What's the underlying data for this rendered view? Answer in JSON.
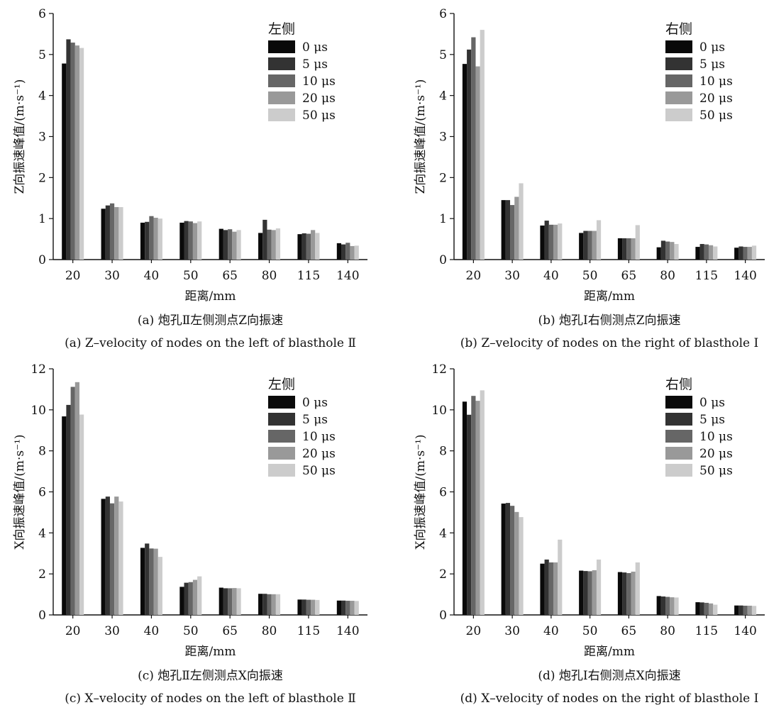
{
  "colors": [
    "#0a0a0a",
    "#333333",
    "#666666",
    "#999999",
    "#cccccc"
  ],
  "chart_data": [
    {
      "type": "bar",
      "ylabel": "Z向振速峰值/(m·s⁻¹)",
      "xlabel": "距离/mm",
      "caption_cn": "(a) 炮孔Ⅱ左侧测点Z向振速",
      "caption_en": "(a) Z–velocity of nodes on the left of blasthole Ⅱ",
      "legend_title": "左侧",
      "legend_position": "top-right",
      "categories": [
        "20",
        "30",
        "40",
        "50",
        "65",
        "80",
        "115",
        "140"
      ],
      "ylim": [
        0,
        6
      ],
      "yticks": [
        0,
        1,
        2,
        3,
        4,
        5,
        6
      ],
      "series": [
        {
          "name": "0 μs",
          "values": [
            4.78,
            1.24,
            0.9,
            0.9,
            0.75,
            0.65,
            0.62,
            0.4
          ]
        },
        {
          "name": "5 μs",
          "values": [
            5.37,
            1.32,
            0.92,
            0.94,
            0.72,
            0.97,
            0.64,
            0.37
          ]
        },
        {
          "name": "10 μs",
          "values": [
            5.29,
            1.37,
            1.06,
            0.93,
            0.74,
            0.73,
            0.63,
            0.41
          ]
        },
        {
          "name": "20 μs",
          "values": [
            5.22,
            1.28,
            1.02,
            0.89,
            0.68,
            0.72,
            0.72,
            0.33
          ]
        },
        {
          "name": "50 μs",
          "values": [
            5.16,
            1.28,
            1.0,
            0.93,
            0.72,
            0.76,
            0.65,
            0.34
          ]
        }
      ]
    },
    {
      "type": "bar",
      "ylabel": "Z向振速峰值/(m·s⁻¹)",
      "xlabel": "距离/mm",
      "caption_cn": "(b) 炮孔Ⅰ右侧测点Z向振速",
      "caption_en": "(b) Z–velocity of nodes on the right of blasthole Ⅰ",
      "legend_title": "右侧",
      "legend_position": "top-right",
      "categories": [
        "20",
        "30",
        "40",
        "50",
        "65",
        "80",
        "115",
        "140"
      ],
      "ylim": [
        0,
        6
      ],
      "yticks": [
        0,
        1,
        2,
        3,
        4,
        5,
        6
      ],
      "series": [
        {
          "name": "0 μs",
          "values": [
            4.77,
            1.45,
            0.83,
            0.65,
            0.52,
            0.3,
            0.31,
            0.29
          ]
        },
        {
          "name": "5 μs",
          "values": [
            5.12,
            1.45,
            0.95,
            0.7,
            0.52,
            0.46,
            0.38,
            0.32
          ]
        },
        {
          "name": "10 μs",
          "values": [
            5.42,
            1.33,
            0.85,
            0.7,
            0.52,
            0.44,
            0.37,
            0.31
          ]
        },
        {
          "name": "20 μs",
          "values": [
            4.71,
            1.53,
            0.85,
            0.7,
            0.52,
            0.43,
            0.35,
            0.31
          ]
        },
        {
          "name": "50 μs",
          "values": [
            5.6,
            1.86,
            0.88,
            0.96,
            0.84,
            0.38,
            0.32,
            0.34
          ]
        }
      ]
    },
    {
      "type": "bar",
      "ylabel": "X向振速峰值/(m·s⁻¹)",
      "xlabel": "距离/mm",
      "caption_cn": "(c) 炮孔Ⅱ左侧测点X向振速",
      "caption_en": "(c) X–velocity of nodes on the left of blasthole Ⅱ",
      "legend_title": "左侧",
      "legend_position": "top-right",
      "categories": [
        "20",
        "30",
        "40",
        "50",
        "65",
        "80",
        "115",
        "140"
      ],
      "ylim": [
        0,
        12
      ],
      "yticks": [
        0,
        2,
        4,
        6,
        8,
        10,
        12
      ],
      "series": [
        {
          "name": "0 μs",
          "values": [
            9.68,
            5.66,
            3.27,
            1.37,
            1.33,
            1.03,
            0.75,
            0.7
          ]
        },
        {
          "name": "5 μs",
          "values": [
            10.24,
            5.77,
            3.48,
            1.57,
            1.3,
            1.03,
            0.75,
            0.7
          ]
        },
        {
          "name": "10 μs",
          "values": [
            11.12,
            5.44,
            3.24,
            1.6,
            1.3,
            1.01,
            0.74,
            0.69
          ]
        },
        {
          "name": "20 μs",
          "values": [
            11.35,
            5.77,
            3.23,
            1.71,
            1.31,
            1.01,
            0.74,
            0.69
          ]
        },
        {
          "name": "50 μs",
          "values": [
            9.77,
            5.53,
            2.83,
            1.88,
            1.3,
            1.01,
            0.73,
            0.68
          ]
        }
      ]
    },
    {
      "type": "bar",
      "ylabel": "X向振速峰值/(m·s⁻¹)",
      "xlabel": "距离/mm",
      "caption_cn": "(d) 炮孔Ⅰ右侧测点X向振速",
      "caption_en": "(d) X–velocity of nodes on the right of blasthole Ⅰ",
      "legend_title": "右侧",
      "legend_position": "top-right",
      "categories": [
        "20",
        "30",
        "40",
        "50",
        "65",
        "80",
        "115",
        "140"
      ],
      "ylim": [
        0,
        12
      ],
      "yticks": [
        0,
        2,
        4,
        6,
        8,
        10,
        12
      ],
      "series": [
        {
          "name": "0 μs",
          "values": [
            10.4,
            5.43,
            2.5,
            2.16,
            2.09,
            0.92,
            0.62,
            0.46
          ]
        },
        {
          "name": "5 μs",
          "values": [
            9.76,
            5.46,
            2.7,
            2.14,
            2.07,
            0.9,
            0.61,
            0.46
          ]
        },
        {
          "name": "10 μs",
          "values": [
            10.68,
            5.32,
            2.56,
            2.13,
            2.04,
            0.88,
            0.59,
            0.45
          ]
        },
        {
          "name": "20 μs",
          "values": [
            10.44,
            5.02,
            2.56,
            2.18,
            2.11,
            0.86,
            0.56,
            0.45
          ]
        },
        {
          "name": "50 μs",
          "values": [
            10.95,
            4.77,
            3.67,
            2.7,
            2.56,
            0.85,
            0.5,
            0.44
          ]
        }
      ]
    }
  ]
}
